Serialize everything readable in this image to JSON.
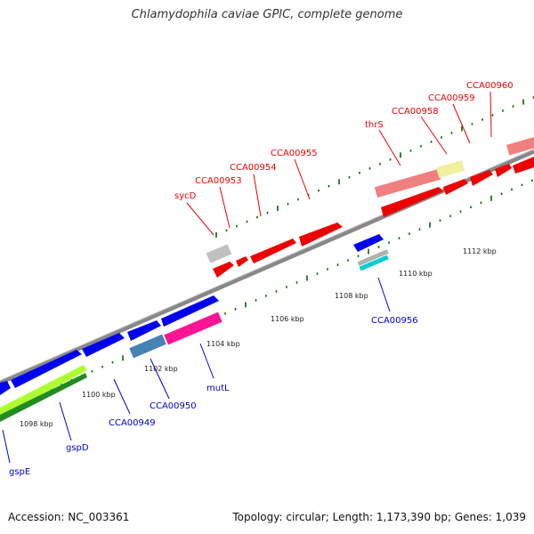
{
  "title": "Chlamydophila caviae GPIC, complete genome",
  "footer": {
    "accession": "Accession: NC_003361",
    "info": "Topology: circular; Length: 1,173,390 bp; Genes: 1,039"
  },
  "colors": {
    "red": "#ff0000",
    "blue": "#0000ee",
    "pink": "#f08080",
    "yellow": "#f0f0a0",
    "gray": "#c0c0c0",
    "steel": "#4682b4",
    "magenta": "#ff1493",
    "cyan": "#00ced1",
    "lime": "#adff2f",
    "green": "#228b22",
    "label_red": "#ee0000",
    "label_blue": "#0000cc",
    "tick": "#006400",
    "backbone": "#888888"
  },
  "kbp_labels": [
    "1098 kbp",
    "1100 kbp",
    "1102 kbp",
    "1104 kbp",
    "1106 kbp",
    "1108 kbp",
    "1110 kbp",
    "1112 kbp"
  ],
  "gene_labels": {
    "forward": [
      "sycD",
      "CCA00953",
      "CCA00954",
      "CCA00955",
      "thrS",
      "CCA00958",
      "CCA00959",
      "CCA00960"
    ],
    "reverse": [
      "gspE",
      "gspD",
      "CCA00949",
      "CCA00950",
      "mutL",
      "CCA00956"
    ]
  }
}
